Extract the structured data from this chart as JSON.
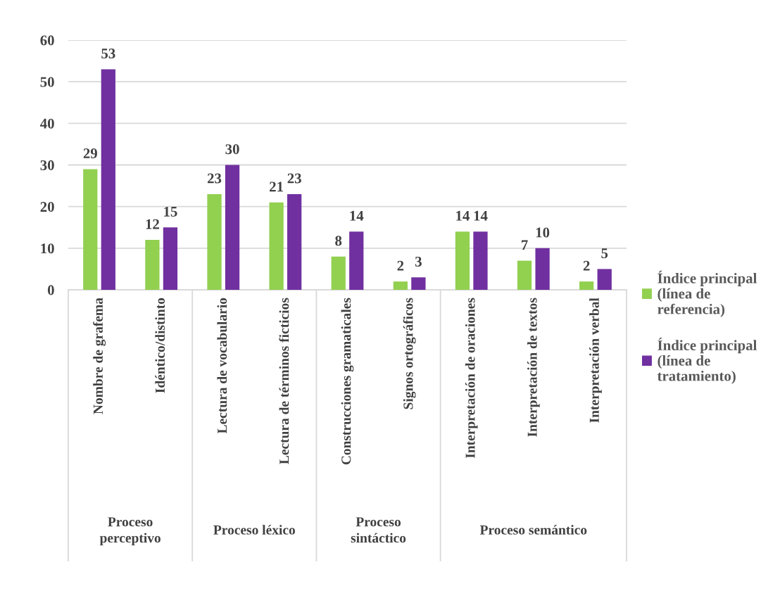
{
  "chart_data": {
    "type": "bar",
    "categories": [
      "Nombre de grafema",
      "Idéntico/distinto",
      "Lectura de vocabulario",
      "Lectura de términos ficticios",
      "Construcciones gramaticales",
      "Signos ortográficos",
      "Interpretación de oraciones",
      "Interpretación de textos",
      "Interpretación verbal"
    ],
    "series": [
      {
        "name": "Índice principal\n(línea de\nreferencia)",
        "color": "#92d050",
        "values": [
          29,
          12,
          23,
          21,
          8,
          2,
          14,
          7,
          2
        ]
      },
      {
        "name": "Índice principal\n(línea de\ntratamiento)",
        "color": "#7030a0",
        "values": [
          53,
          15,
          30,
          23,
          14,
          3,
          14,
          10,
          5
        ]
      }
    ],
    "ylim": [
      0,
      60
    ],
    "yticks": [
      0,
      10,
      20,
      30,
      40,
      50,
      60
    ],
    "grid": "y",
    "legend": "right",
    "data_labels": true,
    "annotations": [
      "Proceso\nperceptivo",
      "Proceso léxico",
      "Proceso\nsintáctico",
      "Proceso semántico"
    ]
  }
}
